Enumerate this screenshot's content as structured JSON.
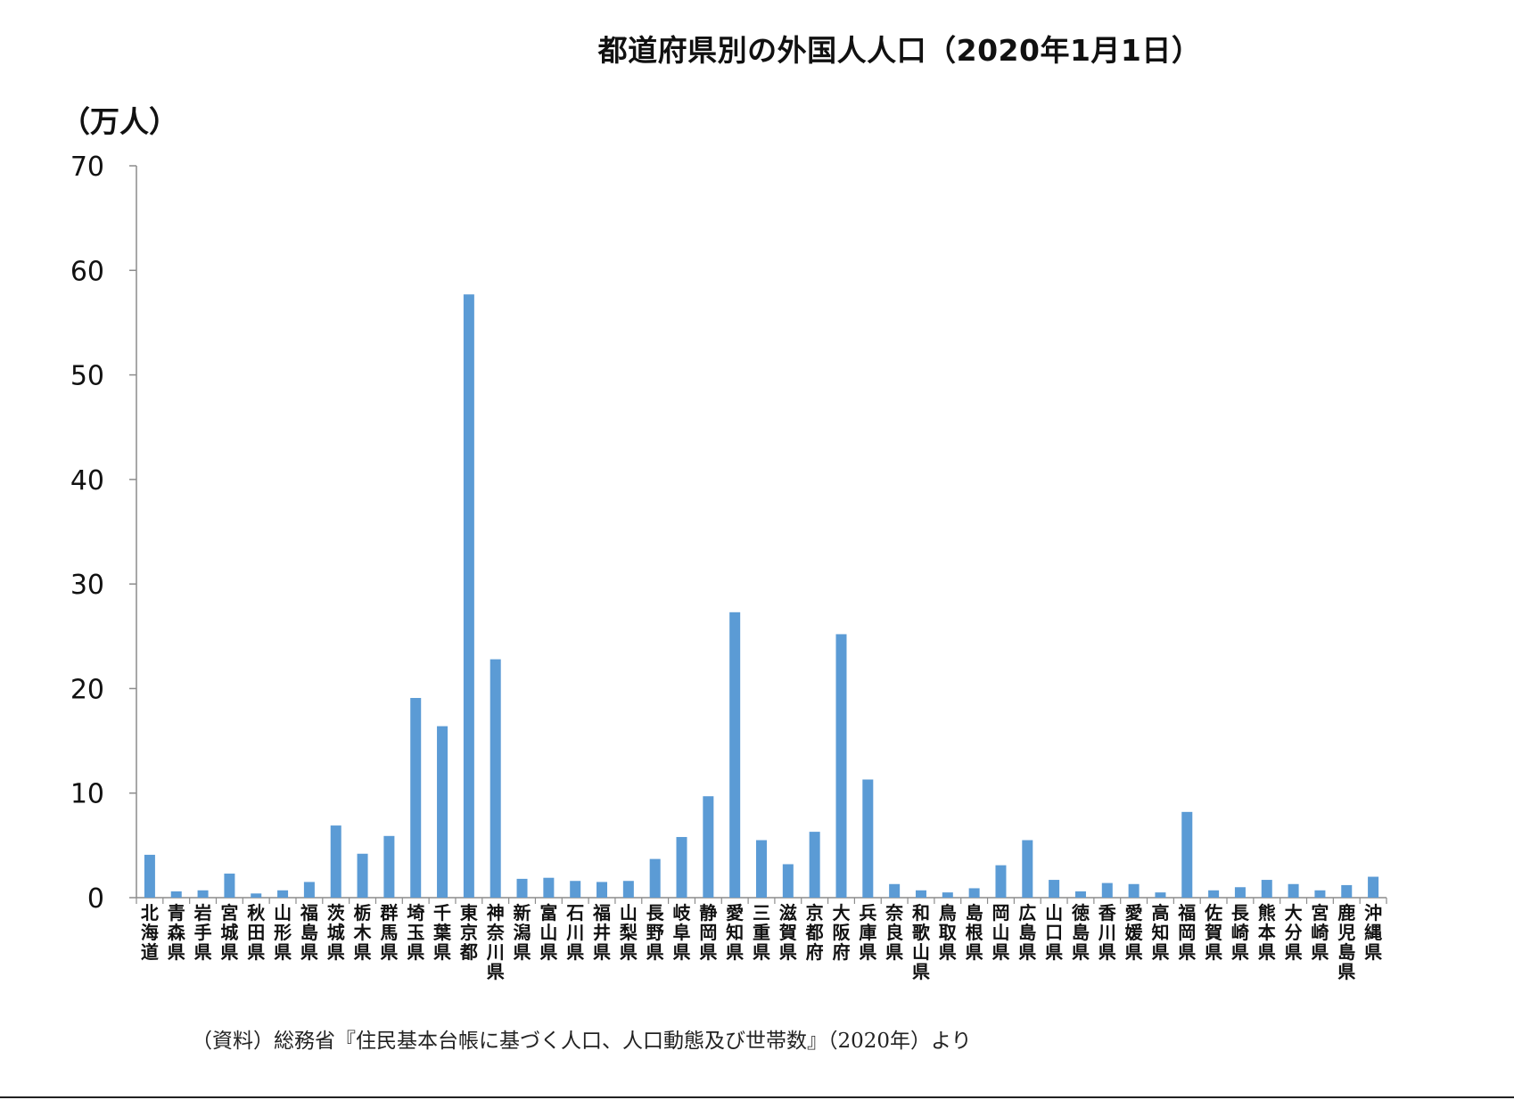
{
  "chart_data": {
    "type": "bar",
    "title": "都道府県別の外国人人口（2020年1月1日）",
    "ylabel": "（万人）",
    "xlabel": "",
    "ylim": [
      0,
      70
    ],
    "yticks": [
      "0",
      "10",
      "20",
      "30",
      "40",
      "50",
      "60",
      "70"
    ],
    "grid": false,
    "bar_color": "#5B9BD5",
    "categories": [
      "北海道",
      "青森県",
      "岩手県",
      "宮城県",
      "秋田県",
      "山形県",
      "福島県",
      "茨城県",
      "栃木県",
      "群馬県",
      "埼玉県",
      "千葉県",
      "東京都",
      "神奈川県",
      "新潟県",
      "富山県",
      "石川県",
      "福井県",
      "山梨県",
      "長野県",
      "岐阜県",
      "静岡県",
      "愛知県",
      "三重県",
      "滋賀県",
      "京都府",
      "大阪府",
      "兵庫県",
      "奈良県",
      "和歌山県",
      "鳥取県",
      "島根県",
      "岡山県",
      "広島県",
      "山口県",
      "徳島県",
      "香川県",
      "愛媛県",
      "高知県",
      "福岡県",
      "佐賀県",
      "長崎県",
      "熊本県",
      "大分県",
      "宮崎県",
      "鹿児島県",
      "沖縄県"
    ],
    "values": [
      4.1,
      0.6,
      0.7,
      2.3,
      0.4,
      0.7,
      1.5,
      6.9,
      4.2,
      5.9,
      19.1,
      16.4,
      57.7,
      22.8,
      1.8,
      1.9,
      1.6,
      1.5,
      1.6,
      3.7,
      5.8,
      9.7,
      27.3,
      5.5,
      3.2,
      6.3,
      25.2,
      11.3,
      1.3,
      0.7,
      0.5,
      0.9,
      3.1,
      5.5,
      1.7,
      0.6,
      1.4,
      1.3,
      0.5,
      8.2,
      0.7,
      1.0,
      1.7,
      1.3,
      0.7,
      1.2,
      2.0
    ]
  },
  "source_note": "（資料）総務省『住民基本台帳に基づく人口、人口動態及び世帯数』（2020年）より"
}
